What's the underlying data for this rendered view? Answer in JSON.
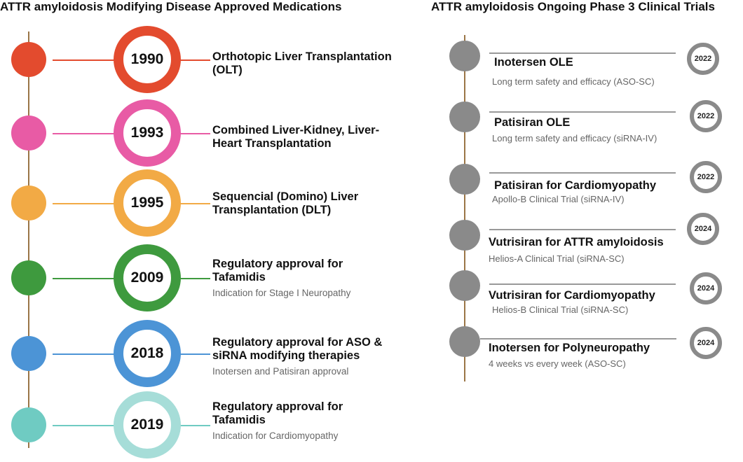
{
  "left": {
    "title": "ATTR amyloidosis Modifying Disease Approved Medications",
    "items": [
      {
        "year": "1990",
        "heading": "Orthotopic Liver Transplantation  (OLT)",
        "sub": "",
        "color": "#E34B2E",
        "ring_color": "#E34B2E"
      },
      {
        "year": "1993",
        "heading": "Combined Liver-Kidney, Liver-Heart Transplantation",
        "sub": "",
        "color": "#E85BA5",
        "ring_color": "#E85BA5"
      },
      {
        "year": "1995",
        "heading": "Sequencial (Domino) Liver Transplantation  (DLT)",
        "sub": "",
        "color": "#F2AA45",
        "ring_color": "#F2AA45"
      },
      {
        "year": "2009",
        "heading": "Regulatory approval for Tafamidis",
        "sub": "Indication for Stage I Neuropathy",
        "color": "#3E9A3E",
        "ring_color": "#3E9A3E"
      },
      {
        "year": "2018",
        "heading": "Regulatory approval for ASO & siRNA modifying therapies",
        "sub": "Inotersen and Patisiran approval",
        "color": "#4C94D6",
        "ring_color": "#4C94D6"
      },
      {
        "year": "2019",
        "heading": "Regulatory approval for Tafamidis",
        "sub": "Indication for Cardiomyopathy",
        "color": "#6FCBC2",
        "ring_color": "#A6DDD8"
      }
    ]
  },
  "right": {
    "title": "ATTR amyloidosis Ongoing Phase 3 Clinical Trials",
    "items": [
      {
        "year": "2022",
        "heading": "Inotersen OLE",
        "sub": "Long term safety and efficacy  (ASO-SC)"
      },
      {
        "year": "2022",
        "heading": "Patisiran OLE",
        "sub": "Long term safety and efficacy (siRNA-IV)"
      },
      {
        "year": "2022",
        "heading": "Patisiran for Cardiomyopathy",
        "sub": "Apollo-B Clinical Trial (siRNA-IV)"
      },
      {
        "year": "2024",
        "heading": "Vutrisiran for  ATTR amyloidosis",
        "sub": "Helios-A Clinical Trial (siRNA-SC)"
      },
      {
        "year": "2024",
        "heading": "Vutrisiran for  Cardiomyopathy",
        "sub": "Helios-B Clinical Trial (siRNA-SC)"
      },
      {
        "year": "2024",
        "heading": "Inotersen for  Polyneuropathy",
        "sub": "4 weeks  vs every week  (ASO-SC)"
      }
    ]
  }
}
